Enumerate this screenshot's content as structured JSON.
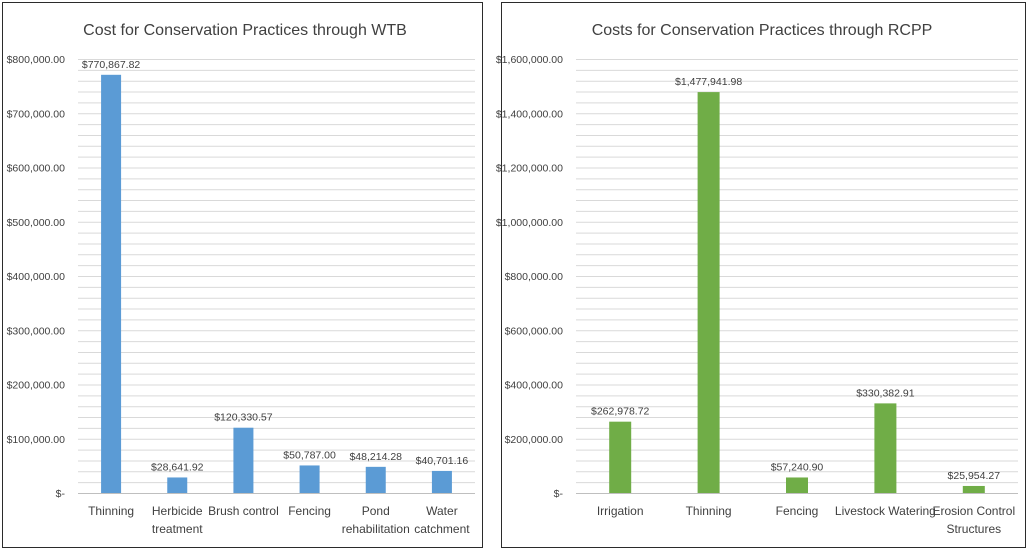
{
  "chart_data": [
    {
      "type": "bar",
      "title": "Cost for Conservation Practices through WTB",
      "color": "#5b9bd5",
      "categories": [
        [
          "Thinning"
        ],
        [
          "Herbicide",
          "treatment"
        ],
        [
          "Brush control"
        ],
        [
          "Fencing"
        ],
        [
          "Pond",
          "rehabilitation"
        ],
        [
          "Water",
          "catchment"
        ]
      ],
      "values": [
        770867.82,
        28641.92,
        120330.57,
        50787.0,
        48214.28,
        40701.16
      ],
      "data_labels": [
        "$770,867.82",
        "$28,641.92",
        "$120,330.57",
        "$50,787.00",
        "$48,214.28",
        "$40,701.16"
      ],
      "ylim": [
        0,
        800000
      ],
      "major_step": 100000,
      "minor_step": 20000,
      "tick_labels": [
        "$-",
        "$100,000.00",
        "$200,000.00",
        "$300,000.00",
        "$400,000.00",
        "$500,000.00",
        "$600,000.00",
        "$700,000.00",
        "$800,000.00"
      ],
      "xlabel": "",
      "ylabel": ""
    },
    {
      "type": "bar",
      "title": "Costs for Conservation Practices through RCPP",
      "color": "#70ad47",
      "categories": [
        [
          "Irrigation"
        ],
        [
          "Thinning"
        ],
        [
          "Fencing"
        ],
        [
          "Livestock Watering"
        ],
        [
          "Erosion Control",
          "Structures"
        ]
      ],
      "values": [
        262978.72,
        1477941.98,
        57240.9,
        330382.91,
        25954.27
      ],
      "data_labels": [
        "$262,978.72",
        "$1,477,941.98",
        "$57,240.90",
        "$330,382.91",
        "$25,954.27"
      ],
      "ylim": [
        0,
        1600000
      ],
      "major_step": 200000,
      "minor_step": 40000,
      "tick_labels": [
        "$-",
        "$200,000.00",
        "$400,000.00",
        "$600,000.00",
        "$800,000.00",
        "$1,000,000.00",
        "$1,200,000.00",
        "$1,400,000.00",
        "$1,600,000.00"
      ],
      "xlabel": "",
      "ylabel": ""
    }
  ]
}
